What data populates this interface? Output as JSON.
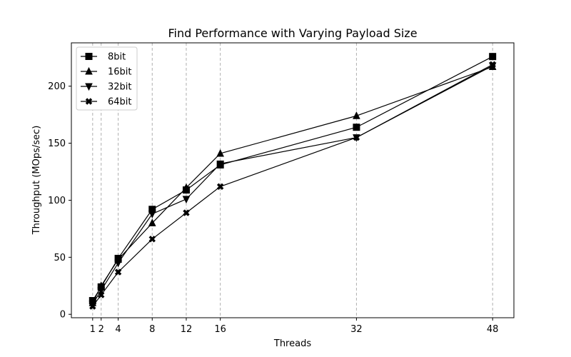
{
  "chart_data": {
    "type": "line",
    "title": "Find Performance with Varying Payload Size",
    "xlabel": "Threads",
    "ylabel": "Throughput (MOps/sec)",
    "x": [
      1,
      2,
      4,
      8,
      12,
      16,
      32,
      48
    ],
    "xticks": [
      1,
      2,
      4,
      8,
      12,
      16,
      32,
      48
    ],
    "yticks": [
      0,
      50,
      100,
      150,
      200
    ],
    "xlim": [
      -1.5,
      50.5
    ],
    "ylim": [
      -3,
      238
    ],
    "grid": "vertical-dashed",
    "legend_position": "top-left",
    "line_color": "#000000",
    "grid_color": "#b0b0b0",
    "series": [
      {
        "name": "8bit",
        "marker": "square",
        "values": [
          12,
          24,
          49,
          92,
          109,
          131,
          164,
          226
        ]
      },
      {
        "name": "16bit",
        "marker": "triangle-up",
        "values": [
          10,
          25,
          48,
          80,
          111,
          141,
          174,
          217
        ]
      },
      {
        "name": "32bit",
        "marker": "triangle-down",
        "values": [
          9,
          21,
          45,
          88,
          101,
          132,
          155,
          218
        ]
      },
      {
        "name": "64bit",
        "marker": "x-filled",
        "values": [
          7,
          17,
          37,
          66,
          89,
          112,
          155,
          219
        ]
      }
    ]
  }
}
